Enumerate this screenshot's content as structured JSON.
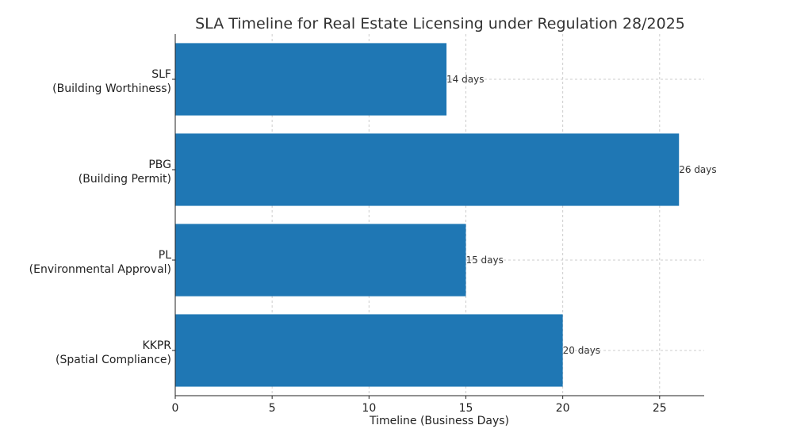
{
  "chart_data": {
    "type": "bar",
    "orientation": "horizontal",
    "title": "SLA Timeline for Real Estate Licensing under Regulation 28/2025",
    "xlabel": "Timeline (Business Days)",
    "ylabel": "",
    "xlim": [
      0,
      27.3
    ],
    "xticks": [
      0,
      5,
      10,
      15,
      20,
      25
    ],
    "grid": true,
    "bar_color": "#1f77b4",
    "categories": [
      {
        "line1": "SLF",
        "line2": "(Building Worthiness)"
      },
      {
        "line1": "PBG",
        "line2": "(Building Permit)"
      },
      {
        "line1": "PL",
        "line2": "(Environmental Approval)"
      },
      {
        "line1": "KKPR",
        "line2": "(Spatial Compliance)"
      }
    ],
    "values": [
      14,
      26,
      15,
      20
    ],
    "data_labels": [
      "14 days",
      "26 days",
      "15 days",
      "20 days"
    ]
  }
}
